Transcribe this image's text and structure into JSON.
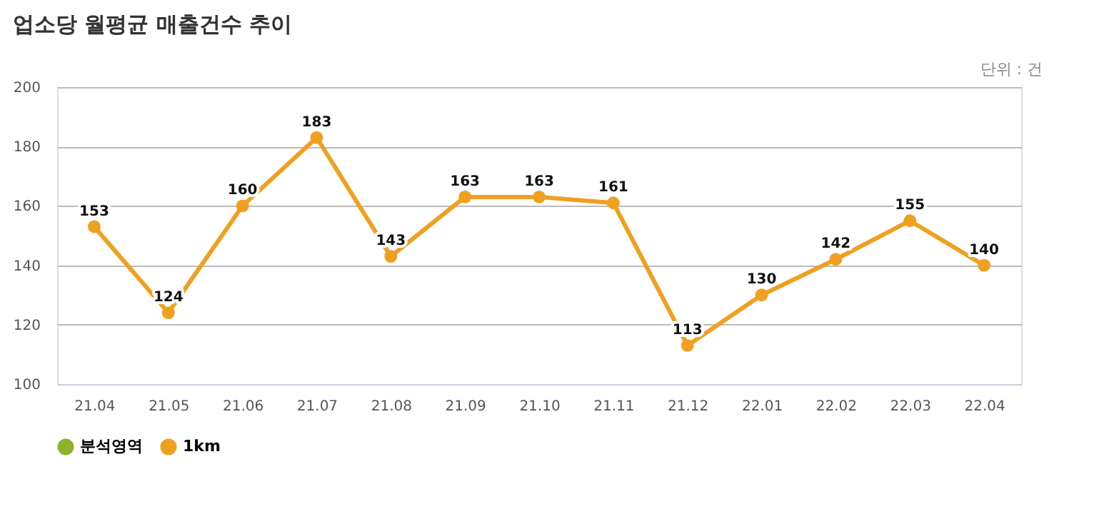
{
  "chart_data": {
    "type": "line",
    "title": "업소당 월평균 매출건수 추이",
    "annotations": [
      "단위 : 건"
    ],
    "categories": [
      "21.04",
      "21.05",
      "21.06",
      "21.07",
      "21.08",
      "21.09",
      "21.10",
      "21.11",
      "21.12",
      "22.01",
      "22.02",
      "22.03",
      "22.04"
    ],
    "series": [
      {
        "name": "분석영역",
        "color": "#8db32b",
        "values": [
          null,
          null,
          null,
          null,
          null,
          null,
          null,
          null,
          null,
          null,
          null,
          null,
          null
        ]
      },
      {
        "name": "1km",
        "color": "#f0a020",
        "values": [
          153,
          124,
          160,
          183,
          143,
          163,
          163,
          161,
          113,
          130,
          142,
          155,
          140
        ]
      }
    ],
    "ylim": [
      100,
      200
    ],
    "yticks": [
      100,
      120,
      140,
      160,
      180,
      200
    ],
    "grid": "y",
    "legend": "bottom",
    "marker": "circle",
    "line_style": "solid",
    "data_labels": true
  }
}
